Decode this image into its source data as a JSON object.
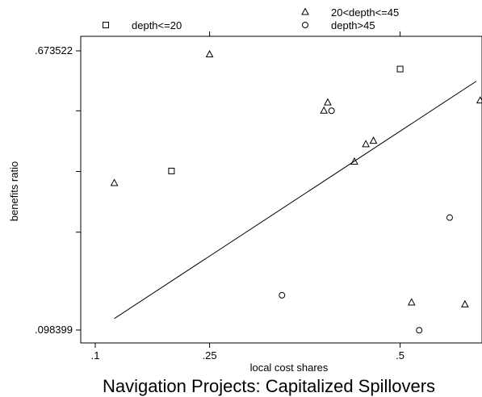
{
  "chart_data": {
    "type": "scatter",
    "title": "Navigation Projects: Capitalized Spillovers",
    "xlabel": "local cost shares",
    "ylabel": "benefits ratio",
    "xlim": [
      0.096,
      0.61
    ],
    "ylim": [
      0.098399,
      0.673522
    ],
    "xticks": [
      {
        "value": 0.1,
        "label": ".1"
      },
      {
        "value": 0.25,
        "label": ".25"
      },
      {
        "value": 0.5,
        "label": ".5"
      }
    ],
    "xticks_top": [
      0.25,
      0.5
    ],
    "yticks": [
      {
        "value": 0.673522,
        "label": ".673522"
      },
      {
        "value": 0.55,
        "label": ""
      },
      {
        "value": 0.425,
        "label": ""
      },
      {
        "value": 0.3,
        "label": ""
      },
      {
        "value": 0.098399,
        "label": ".098399"
      }
    ],
    "grid": false,
    "legend_position": "top",
    "series": [
      {
        "name": "depth<=20",
        "marker": "square",
        "points": [
          [
            0.2,
            0.426
          ],
          [
            0.5,
            0.636
          ]
        ]
      },
      {
        "name": "20<depth<=45",
        "marker": "triangle",
        "points": [
          [
            0.125,
            0.401
          ],
          [
            0.25,
            0.666
          ],
          [
            0.4,
            0.55
          ],
          [
            0.405,
            0.567
          ],
          [
            0.44,
            0.445
          ],
          [
            0.455,
            0.481
          ],
          [
            0.465,
            0.488
          ],
          [
            0.515,
            0.155
          ],
          [
            0.585,
            0.151
          ],
          [
            0.605,
            0.571
          ]
        ]
      },
      {
        "name": "depth>45",
        "marker": "circle",
        "points": [
          [
            0.41,
            0.55
          ],
          [
            0.345,
            0.17
          ],
          [
            0.565,
            0.33
          ],
          [
            0.525,
            0.098
          ]
        ]
      }
    ],
    "fit_line": {
      "x": [
        0.125,
        0.6
      ],
      "y": [
        0.122,
        0.611
      ]
    }
  }
}
